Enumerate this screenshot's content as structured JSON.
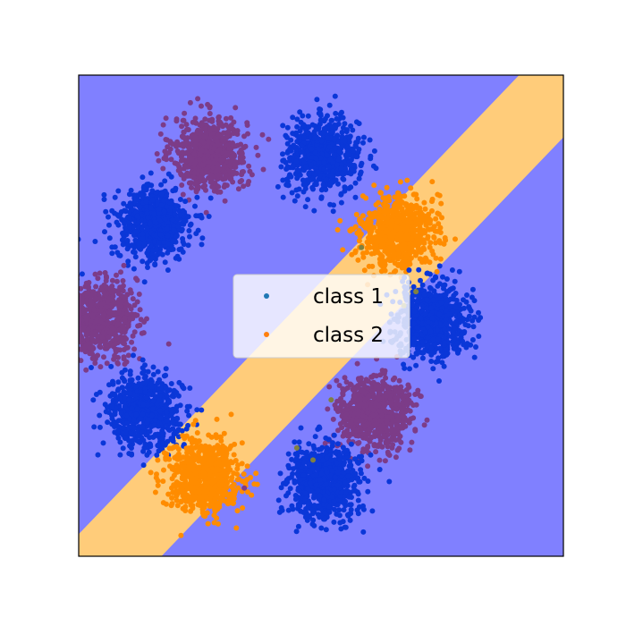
{
  "chart_data": {
    "type": "scatter",
    "title": "",
    "xlabel": "",
    "ylabel": "",
    "xlim": [
      -6,
      6
    ],
    "ylim": [
      -6,
      6
    ],
    "grid": false,
    "ticks": "none",
    "legend": {
      "placement": "center",
      "entries": [
        {
          "label": "class 1",
          "color": "#1f77b4"
        },
        {
          "label": "class 2",
          "color": "#ff7f0e"
        }
      ]
    },
    "decision_regions": {
      "background_class": "class 1",
      "background_color": "#8080ff",
      "band_class": "class 2",
      "band_color": "#ffcc7a",
      "band_boundaries": [
        {
          "name": "upper",
          "slope": 1.05,
          "intercept": 0.85
        },
        {
          "name": "lower",
          "slope": 1.05,
          "intercept": -1.85
        }
      ]
    },
    "clusters": [
      {
        "id": "top-left-upper",
        "center": [
          -2.75,
          4.05
        ],
        "spread": 0.45,
        "points": 700,
        "displayed_class": "mixed",
        "color": "#7c3c88"
      },
      {
        "id": "top-right-upper",
        "center": [
          0.05,
          3.98
        ],
        "spread": 0.45,
        "points": 700,
        "displayed_class": "class 1",
        "color": "#0a37d8"
      },
      {
        "id": "top-left",
        "center": [
          -4.15,
          2.3
        ],
        "spread": 0.45,
        "points": 700,
        "displayed_class": "class 1",
        "color": "#0a37d8"
      },
      {
        "id": "top-right",
        "center": [
          1.9,
          2.1
        ],
        "spread": 0.45,
        "points": 700,
        "displayed_class": "class 2",
        "color": "#ff8c00"
      },
      {
        "id": "left",
        "center": [
          -5.45,
          -0.1
        ],
        "spread": 0.45,
        "points": 700,
        "displayed_class": "mixed",
        "color": "#7c3c88"
      },
      {
        "id": "right",
        "center": [
          2.75,
          -0.1
        ],
        "spread": 0.45,
        "points": 700,
        "displayed_class": "class 1",
        "color": "#0a37d8"
      },
      {
        "id": "bottom-left",
        "center": [
          -4.35,
          -2.4
        ],
        "spread": 0.45,
        "points": 700,
        "displayed_class": "class 1",
        "color": "#0a37d8"
      },
      {
        "id": "bottom-right",
        "center": [
          1.3,
          -2.42
        ],
        "spread": 0.45,
        "points": 700,
        "displayed_class": "mixed",
        "color": "#7c3c88"
      },
      {
        "id": "bottom-left-lower",
        "center": [
          -2.9,
          -4.05
        ],
        "spread": 0.45,
        "points": 700,
        "displayed_class": "class 2",
        "color": "#ff8c00"
      },
      {
        "id": "bottom-right-lower",
        "center": [
          0.05,
          -4.15
        ],
        "spread": 0.45,
        "points": 700,
        "displayed_class": "class 1",
        "color": "#0a37d8"
      }
    ],
    "stray_points": [
      {
        "x": 1.0,
        "y": 1.7,
        "color": "#808040"
      },
      {
        "x": 2.35,
        "y": 0.6,
        "color": "#808040"
      },
      {
        "x": 2.05,
        "y": 0.25,
        "color": "#808040"
      },
      {
        "x": 0.25,
        "y": -2.1,
        "color": "#808040"
      },
      {
        "x": -0.6,
        "y": -3.3,
        "color": "#808040"
      },
      {
        "x": -0.2,
        "y": -3.6,
        "color": "#808040"
      },
      {
        "x": -1.9,
        "y": -4.3,
        "color": "#7c3c88"
      }
    ]
  }
}
